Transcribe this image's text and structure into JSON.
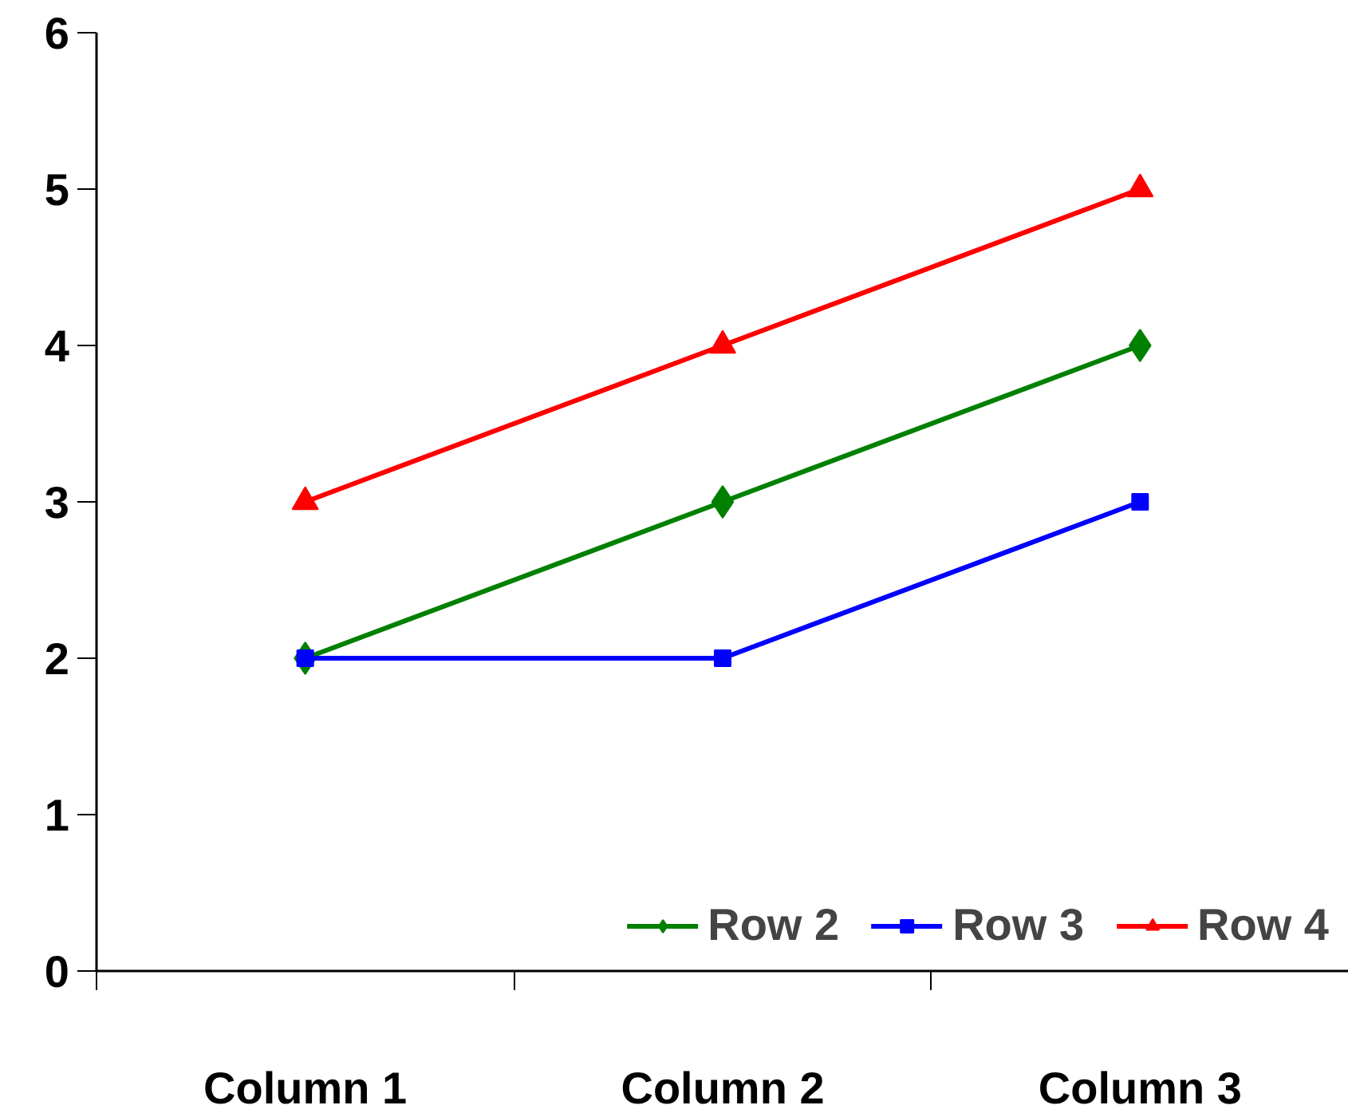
{
  "chart_data": {
    "type": "line",
    "categories": [
      "Column 1",
      "Column 2",
      "Column 3"
    ],
    "series": [
      {
        "name": "Row 2",
        "color": "#008000",
        "marker": "diamond",
        "values": [
          2,
          3,
          4
        ]
      },
      {
        "name": "Row 3",
        "color": "#0000ff",
        "marker": "square",
        "values": [
          2,
          2,
          3
        ]
      },
      {
        "name": "Row 4",
        "color": "#ff0000",
        "marker": "triangle",
        "values": [
          3,
          4,
          5
        ]
      }
    ],
    "ylim": [
      0,
      6
    ],
    "yticks": [
      0,
      1,
      2,
      3,
      4,
      5,
      6
    ],
    "grid": false,
    "legend": "bottom right",
    "line_style": "solid"
  }
}
